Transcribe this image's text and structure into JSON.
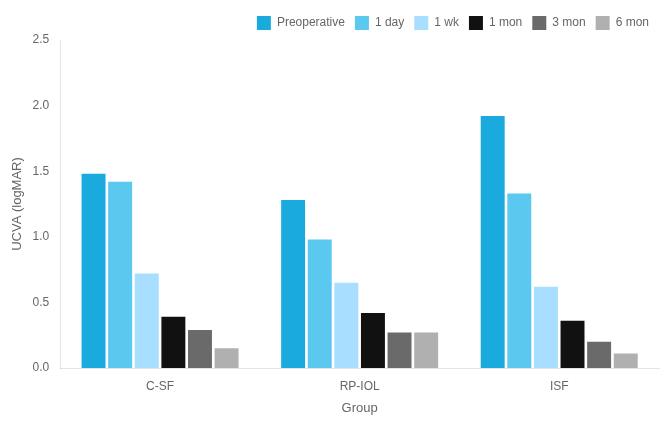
{
  "chart_data": {
    "type": "bar",
    "xlabel": "Group",
    "ylabel": "UCVA (logMAR)",
    "categories": [
      "C-SF",
      "RP-IOL",
      "ISF"
    ],
    "series": [
      {
        "name": "Preoperative",
        "color": "#1BAADE",
        "values": [
          1.48,
          1.28,
          1.92
        ]
      },
      {
        "name": "1 day",
        "color": "#5BC8F0",
        "values": [
          1.42,
          0.98,
          1.33
        ]
      },
      {
        "name": "1 wk",
        "color": "#A8DEFF",
        "values": [
          0.72,
          0.65,
          0.62
        ]
      },
      {
        "name": "1 mon",
        "color": "#111111",
        "values": [
          0.39,
          0.42,
          0.36
        ]
      },
      {
        "name": "3 mon",
        "color": "#6A6A6A",
        "values": [
          0.29,
          0.27,
          0.2
        ]
      },
      {
        "name": "6 mon",
        "color": "#B0B0B0",
        "values": [
          0.15,
          0.27,
          0.11
        ]
      }
    ],
    "ylim": [
      0,
      2.5
    ],
    "yticks": [
      {
        "value": 0,
        "label": "0.0"
      },
      0.5,
      {
        "value": 1.0,
        "label": "1.0"
      },
      1.5,
      {
        "value": 2.0,
        "label": "2.0"
      },
      2.5
    ],
    "grid": false,
    "legend": "upper right"
  }
}
